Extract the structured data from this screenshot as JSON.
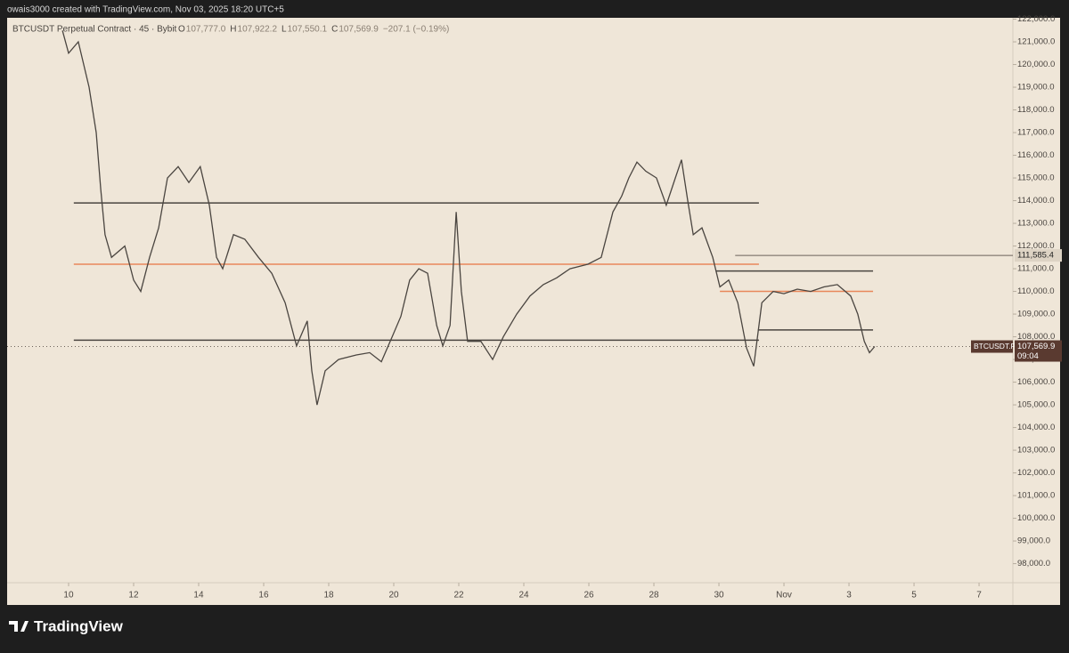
{
  "header": {
    "credit": "owais3000 created with TradingView.com, Nov 03, 2025 18:20 UTC+5",
    "symbol": "BTCUSDT Perpetual Contract · 45 · Bybit",
    "ohlc": [
      {
        "label": "O",
        "value": "107,777.0"
      },
      {
        "label": "H",
        "value": "107,922.2"
      },
      {
        "label": "L",
        "value": "107,550.1"
      },
      {
        "label": "C",
        "value": "107,569.9"
      }
    ],
    "change": "−207.1 (−0.19%)"
  },
  "chart_data": {
    "type": "line",
    "x": [
      -0.19,
      0,
      0.3,
      0.63,
      0.85,
      0.99,
      1.12,
      1.32,
      1.73,
      2.0,
      2.22,
      2.49,
      2.77,
      3.04,
      3.37,
      3.7,
      4.05,
      4.33,
      4.55,
      4.74,
      5.07,
      5.42,
      5.84,
      6.25,
      6.66,
      7.01,
      7.34,
      7.48,
      7.64,
      7.89,
      8.3,
      8.85,
      9.26,
      9.62,
      9.95,
      10.22,
      10.49,
      10.77,
      11.04,
      11.32,
      11.51,
      11.73,
      11.92,
      12.08,
      12.27,
      12.68,
      13.04,
      13.37,
      13.78,
      14.19,
      14.6,
      15.01,
      15.42,
      15.97,
      16.38,
      16.74,
      17.01,
      17.23,
      17.48,
      17.75,
      18.08,
      18.38,
      18.66,
      18.85,
      19.04,
      19.21,
      19.48,
      19.81,
      20.03,
      20.3,
      20.58,
      20.85,
      21.07,
      21.32,
      21.67,
      22.0,
      22.41,
      22.82,
      23.23,
      23.64,
      24.05,
      24.27,
      24.47,
      24.63,
      24.79
    ],
    "series": [
      {
        "name": "BTCUSDT.P",
        "color": "#4a4540",
        "values": [
          121500,
          120500,
          121000,
          119000,
          117000,
          114500,
          112500,
          111500,
          112000,
          110500,
          110000,
          111500,
          112800,
          115000,
          115500,
          114800,
          115500,
          113800,
          111500,
          111000,
          112500,
          112300,
          111500,
          110800,
          109500,
          107600,
          108700,
          106500,
          105000,
          106500,
          107000,
          107200,
          107300,
          106900,
          108000,
          108900,
          110500,
          111000,
          110800,
          108500,
          107600,
          108500,
          113500,
          110000,
          107800,
          107800,
          107000,
          108000,
          109000,
          109800,
          110300,
          110600,
          111000,
          111200,
          111500,
          113500,
          114200,
          115000,
          115700,
          115300,
          115000,
          113800,
          115000,
          115800,
          114000,
          112500,
          112800,
          111500,
          110200,
          110500,
          109500,
          107500,
          106700,
          109500,
          110000,
          109900,
          110100,
          110000,
          110200,
          110300,
          109800,
          109000,
          107800,
          107300,
          107569.9
        ]
      }
    ],
    "xlim": [
      -1.89,
      29.04
    ],
    "xticks": [
      {
        "value": 0,
        "label": "10"
      },
      {
        "value": 2,
        "label": "12"
      },
      {
        "value": 4,
        "label": "14"
      },
      {
        "value": 6,
        "label": "16"
      },
      {
        "value": 8,
        "label": "18"
      },
      {
        "value": 10,
        "label": "20"
      },
      {
        "value": 12,
        "label": "22"
      },
      {
        "value": 14,
        "label": "24"
      },
      {
        "value": 16,
        "label": "26"
      },
      {
        "value": 18,
        "label": "28"
      },
      {
        "value": 20,
        "label": "30"
      },
      {
        "value": 22,
        "label": "Nov"
      },
      {
        "value": 24,
        "label": "3"
      },
      {
        "value": 26,
        "label": "5"
      },
      {
        "value": 28,
        "label": "7"
      }
    ],
    "ylim": [
      97160,
      122060
    ],
    "yticks": [
      {
        "value": 98000,
        "label": "98,000.0"
      },
      {
        "value": 99000,
        "label": "99,000.0"
      },
      {
        "value": 100000,
        "label": "100,000.0"
      },
      {
        "value": 101000,
        "label": "101,000.0"
      },
      {
        "value": 102000,
        "label": "102,000.0"
      },
      {
        "value": 103000,
        "label": "103,000.0"
      },
      {
        "value": 104000,
        "label": "104,000.0"
      },
      {
        "value": 105000,
        "label": "105,000.0"
      },
      {
        "value": 106000,
        "label": "106,000.0"
      },
      {
        "value": 107000,
        "label": "107,000.0"
      },
      {
        "value": 108000,
        "label": "108,000.0"
      },
      {
        "value": 109000,
        "label": "109,000.0"
      },
      {
        "value": 110000,
        "label": "110,000.0"
      },
      {
        "value": 111000,
        "label": "111,000.0"
      },
      {
        "value": 112000,
        "label": "112,000.0"
      },
      {
        "value": 113000,
        "label": "113,000.0"
      },
      {
        "value": 114000,
        "label": "114,000.0"
      },
      {
        "value": 115000,
        "label": "115,000.0"
      },
      {
        "value": 116000,
        "label": "116,000.0"
      },
      {
        "value": 117000,
        "label": "117,000.0"
      },
      {
        "value": 118000,
        "label": "118,000.0"
      },
      {
        "value": 119000,
        "label": "119,000.0"
      },
      {
        "value": 120000,
        "label": "120,000.0"
      },
      {
        "value": 121000,
        "label": "121,000.0"
      },
      {
        "value": 122000,
        "label": "122,000.0"
      }
    ],
    "levels": [
      {
        "value": 113900,
        "from": 0.16,
        "to": 21.23,
        "color": "#4a4540"
      },
      {
        "value": 111200,
        "from": 0.16,
        "to": 21.23,
        "color": "#e8875a"
      },
      {
        "value": 107850,
        "from": 0.16,
        "to": 21.23,
        "color": "#4a4540"
      },
      {
        "value": 110000,
        "from": 20.03,
        "to": 24.74,
        "color": "#e8875a"
      },
      {
        "value": 110900,
        "from": 19.9,
        "to": 24.74,
        "color": "#4a4540"
      },
      {
        "value": 108300,
        "from": 21.2,
        "to": 24.74,
        "color": "#4a4540"
      }
    ],
    "marker": {
      "value": 111585.4,
      "label": "111,585.4",
      "from": 20.5
    },
    "last": {
      "name": "BTCUSDT.P",
      "value": 107569.9,
      "label": "107,569.9",
      "countdown": "09:04"
    }
  },
  "footer": {
    "brand": "TradingView"
  }
}
